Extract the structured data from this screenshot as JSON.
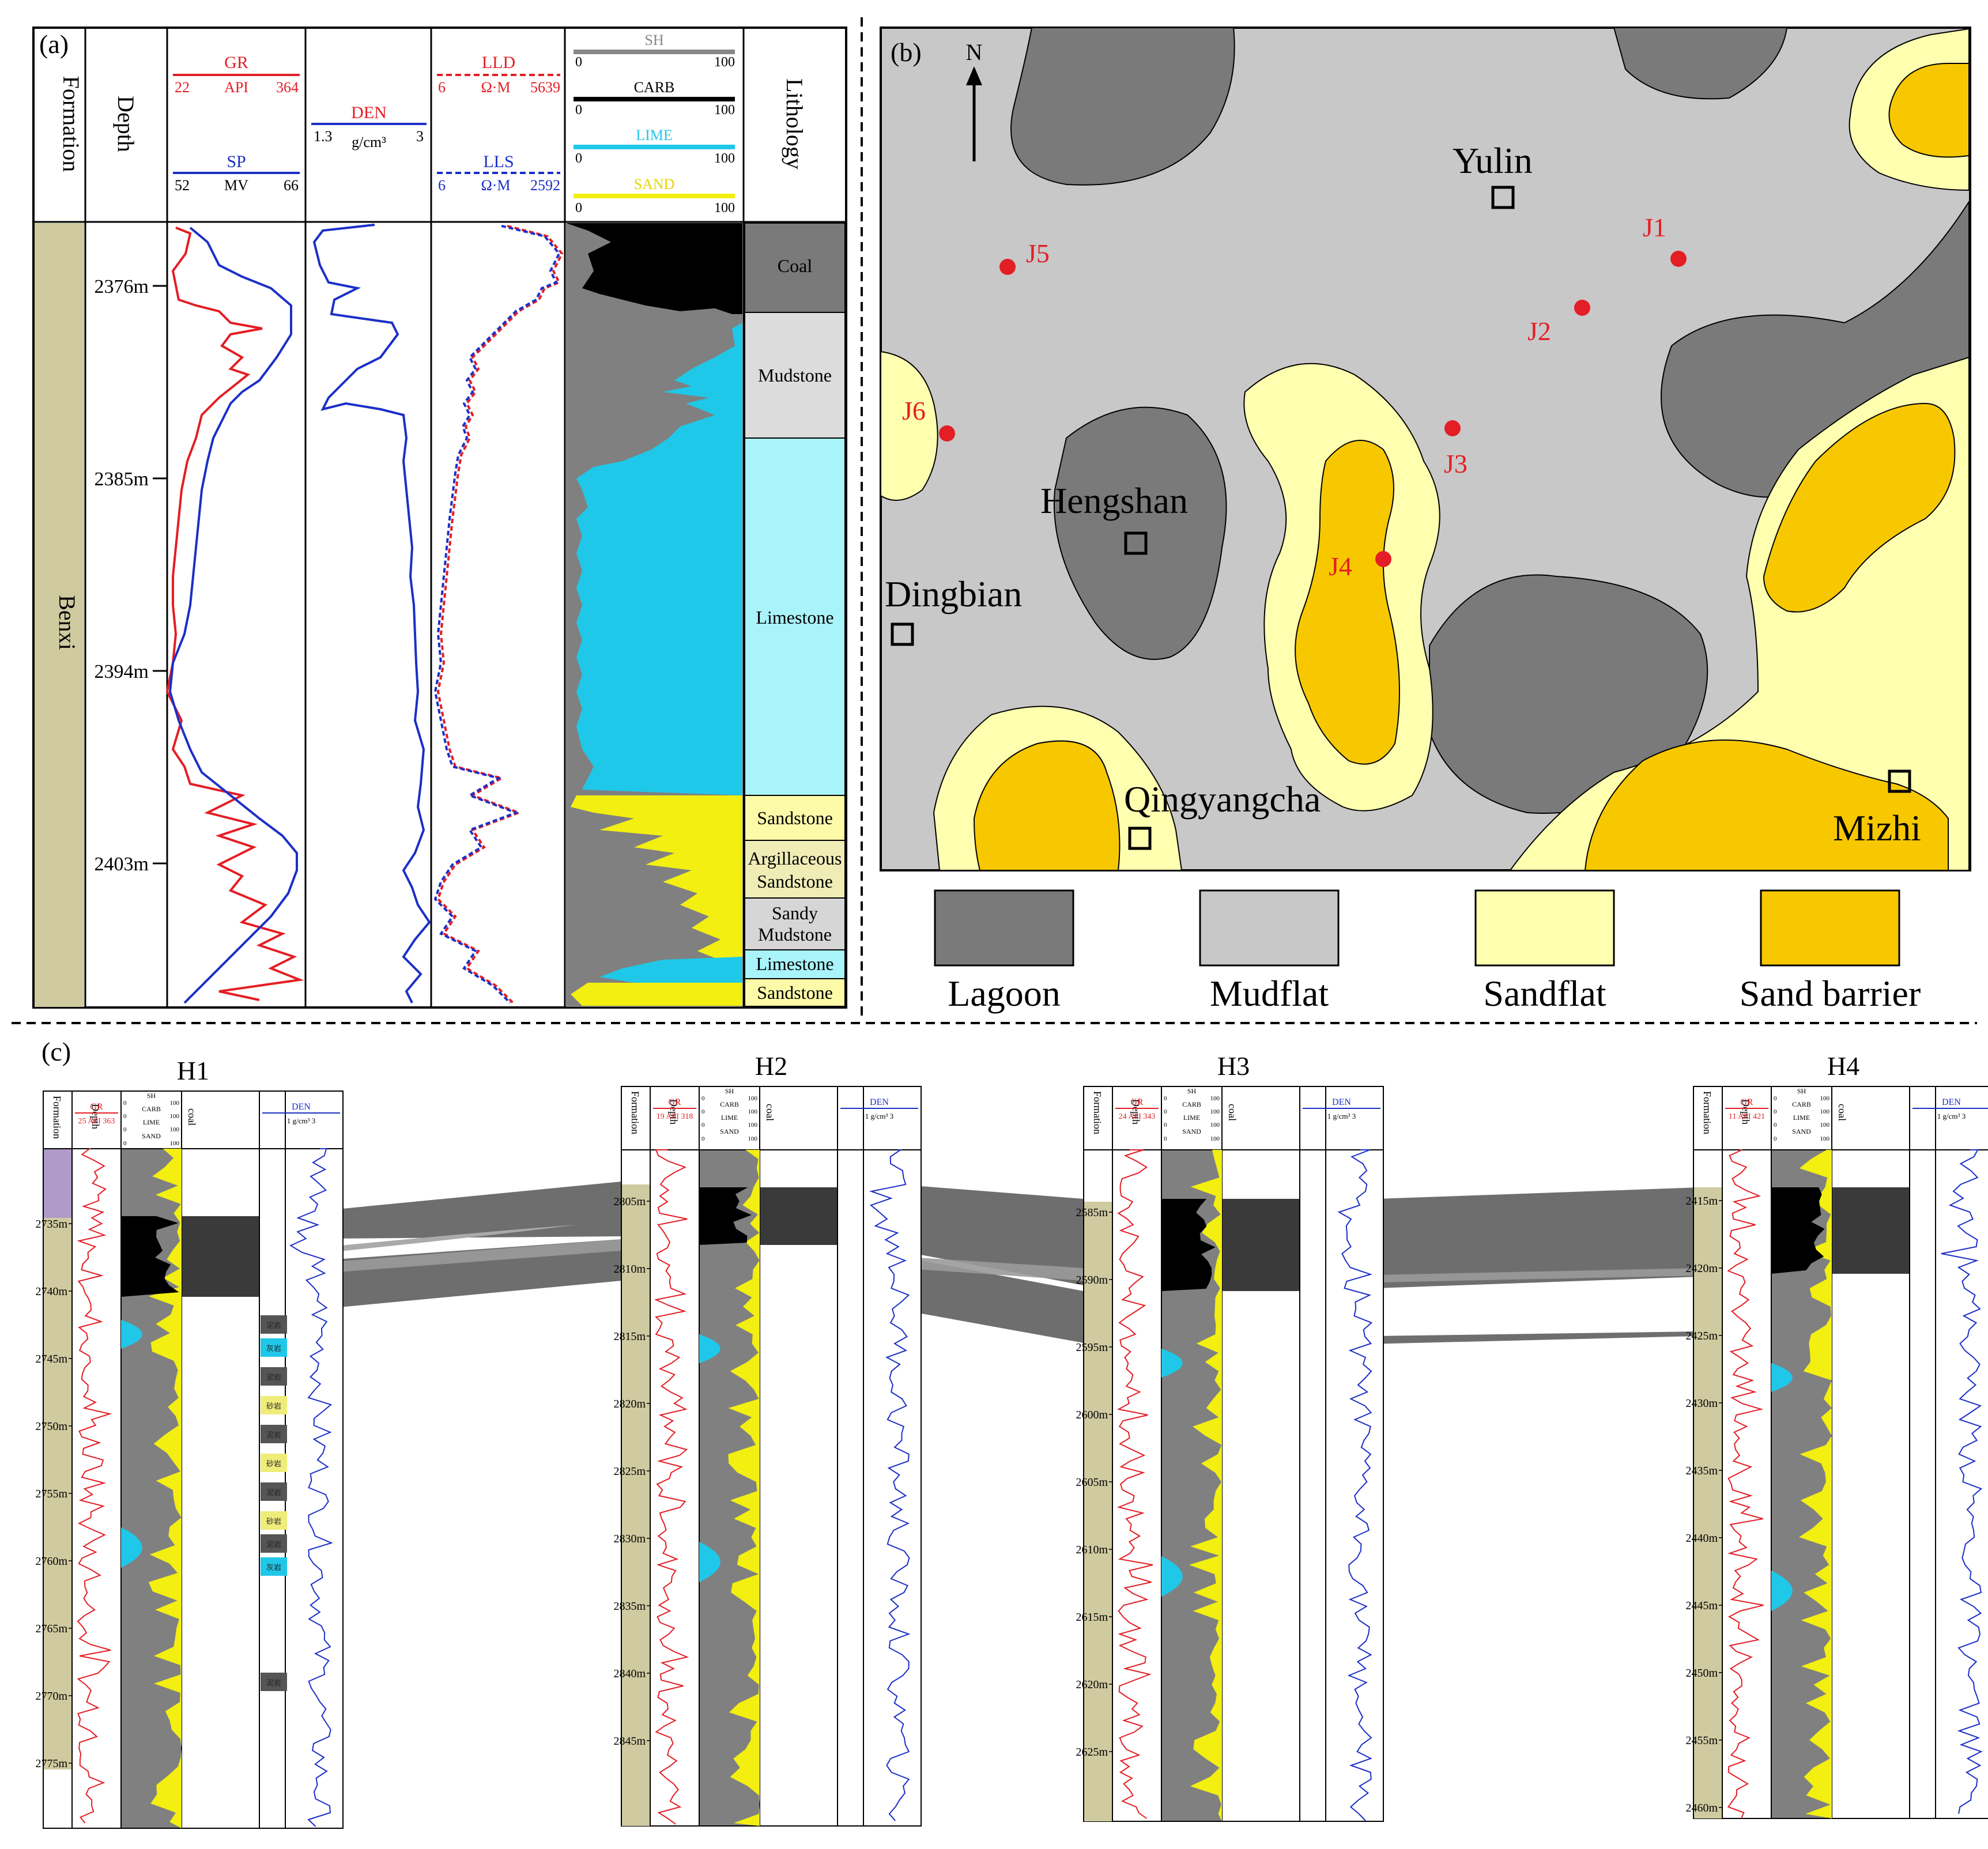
{
  "colors": {
    "gr": "#e31e24",
    "sp": "#1b2fc7",
    "shale": "#808080",
    "carb": "#000000",
    "lime": "#1fc8e8",
    "sand": "#f2ef11",
    "lime_bg": "#a9f3fb",
    "coal_bg": "#7a7a7a",
    "mud_bg": "#dcdcdc",
    "sand_bg": "#fdfaa8",
    "argsand_bg": "#efecb6",
    "sandymud_bg": "#d6d6d6",
    "formation_fill": "#cfcaa0",
    "lagoon": "#7a7a7a",
    "mudflat": "#c8c8c8",
    "sandflat": "#ffffb0",
    "sand_barrier": "#f7c800",
    "well_dot": "#e31e24"
  },
  "panel_a": {
    "label": "(a)",
    "formation_header": "Formation",
    "depth_header": "Depth",
    "lithology_header": "Lithology",
    "formation_name": "Benxi",
    "gr": {
      "name": "GR",
      "min": "22",
      "unit": "API",
      "max": "364"
    },
    "sp": {
      "name": "SP",
      "min": "52",
      "unit": "MV",
      "max": "66"
    },
    "den": {
      "name": "DEN",
      "min": "1.3",
      "unit": "g/cm³",
      "max": "3"
    },
    "lld": {
      "name": "LLD",
      "min": "6",
      "unit": "Ω·M",
      "max": "5639"
    },
    "lls": {
      "name": "LLS",
      "min": "6",
      "unit": "Ω·M",
      "max": "2592"
    },
    "components": [
      {
        "name": "SH",
        "min": "0",
        "max": "100"
      },
      {
        "name": "CARB",
        "min": "0",
        "max": "100"
      },
      {
        "name": "LIME",
        "min": "0",
        "max": "100"
      },
      {
        "name": "SAND",
        "min": "0",
        "max": "100"
      }
    ],
    "depth_ticks": [
      "2376m",
      "2385m",
      "2394m",
      "2403m"
    ],
    "lithology": [
      "Coal",
      "Mudstone",
      "Limestone",
      "Sandstone",
      "Argillaceous Sandstone",
      "Sandy Mudstone",
      "Limestone",
      "Sandstone"
    ]
  },
  "panel_b": {
    "label": "(b)",
    "north": "N",
    "cities": [
      "Yulin",
      "Hengshan",
      "Dingbian",
      "Qingyangcha",
      "Mizhi"
    ],
    "wells": [
      "J1",
      "J2",
      "J3",
      "J4",
      "J5",
      "J6"
    ],
    "legend": [
      "Lagoon",
      "Mudflat",
      "Sandflat",
      "Sand barrier"
    ]
  },
  "panel_c": {
    "label": "(c)",
    "wells": [
      {
        "name": "H1",
        "gr_min": "25",
        "gr_max": "363",
        "ticks": [
          "2735m",
          "2740m",
          "2745m",
          "2750m",
          "2755m",
          "2760m",
          "2765m",
          "2770m",
          "2775m"
        ]
      },
      {
        "name": "H2",
        "gr_min": "19",
        "gr_max": "318",
        "ticks": [
          "2805m",
          "2810m",
          "2815m",
          "2820m",
          "2825m",
          "2830m",
          "2835m",
          "2840m",
          "2845m"
        ]
      },
      {
        "name": "H3",
        "gr_min": "24",
        "gr_max": "343",
        "ticks": [
          "2585m",
          "2590m",
          "2595m",
          "2600m",
          "2605m",
          "2610m",
          "2615m",
          "2620m",
          "2625m"
        ]
      },
      {
        "name": "H4",
        "gr_min": "11",
        "gr_max": "421",
        "ticks": [
          "2415m",
          "2420m",
          "2425m",
          "2430m",
          "2435m",
          "2440m",
          "2445m",
          "2450m",
          "2455m",
          "2460m"
        ]
      }
    ],
    "formation_header": "Formation",
    "depth_header": "Depth",
    "gr_name": "GR",
    "gr_unit": "API",
    "den_name": "DEN",
    "den_min": "1",
    "den_unit": "g/cm³",
    "den_max": "3",
    "coal_header": "coal",
    "comp_names": [
      "SH",
      "CARB",
      "LIME",
      "SAND"
    ],
    "comp_min": "0",
    "comp_max": "100",
    "mini_litho": [
      "泥岩",
      "灰岩",
      "泥岩",
      "砂岩",
      "泥岩",
      "砂岩",
      "泥岩",
      "砂岩",
      "泥岩",
      "灰岩",
      "泥岩"
    ]
  }
}
